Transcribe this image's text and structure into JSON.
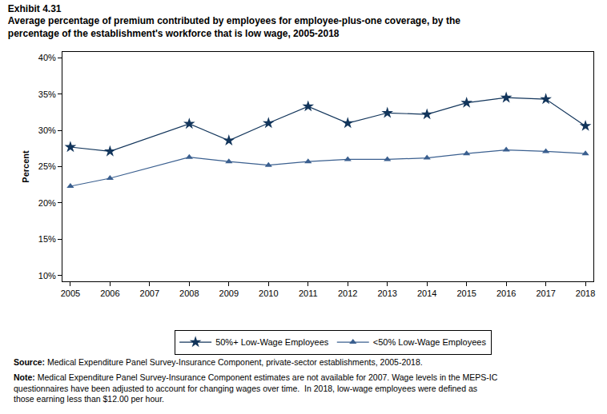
{
  "chart_data": {
    "type": "line",
    "title": "Exhibit 4.31",
    "subtitle": "Average percentage of premium contributed by employees for employee-plus-one coverage, by the percentage of the establishment's workforce that is low wage, 2005-2018",
    "y_label": "Percent",
    "x": [
      2005,
      2006,
      2008,
      2009,
      2010,
      2011,
      2012,
      2013,
      2014,
      2015,
      2016,
      2017,
      2018
    ],
    "series": [
      {
        "name": "50%+ Low-Wage Employees",
        "color": "#12355b",
        "marker": "star",
        "values": [
          27.7,
          27.1,
          30.9,
          28.6,
          31.0,
          33.3,
          31.0,
          32.4,
          32.2,
          33.8,
          34.5,
          34.3,
          30.6
        ]
      },
      {
        "name": "<50% Low-Wage Employees",
        "color": "#3a5f8f",
        "marker": "triangle-up",
        "values": [
          22.3,
          23.4,
          26.3,
          25.7,
          25.2,
          25.7,
          26.0,
          26.0,
          26.2,
          26.8,
          27.3,
          27.1,
          26.8
        ]
      }
    ],
    "xlim": [
      2004.8,
      2018.2
    ],
    "xticks": [
      2005,
      2006,
      2007,
      2008,
      2009,
      2010,
      2011,
      2012,
      2013,
      2014,
      2015,
      2016,
      2017,
      2018
    ],
    "ylim": [
      9.2,
      40.8
    ],
    "yticks": [
      {
        "value": 10,
        "label": "10%"
      },
      {
        "value": 15,
        "label": "15%"
      },
      {
        "value": 20,
        "label": "20%"
      },
      {
        "value": 25,
        "label": "25%"
      },
      {
        "value": 30,
        "label": "30%"
      },
      {
        "value": 35,
        "label": "35%"
      },
      {
        "value": 40,
        "label": "40%"
      }
    ],
    "grid": false,
    "legend": "bottom",
    "source_label": "Source:",
    "source": "Medical Expenditure Panel Survey-Insurance Component, private-sector establishments, 2005-2018.",
    "note_label": "Note:",
    "note": "Medical Expenditure Panel Survey-Insurance Component estimates are not available for 2007. Wage levels in the MEPS-IC questionnaires have been adjusted to account for changing wages over time.  In 2018, low-wage employees were defined as those earning less than $12.00 per hour."
  }
}
